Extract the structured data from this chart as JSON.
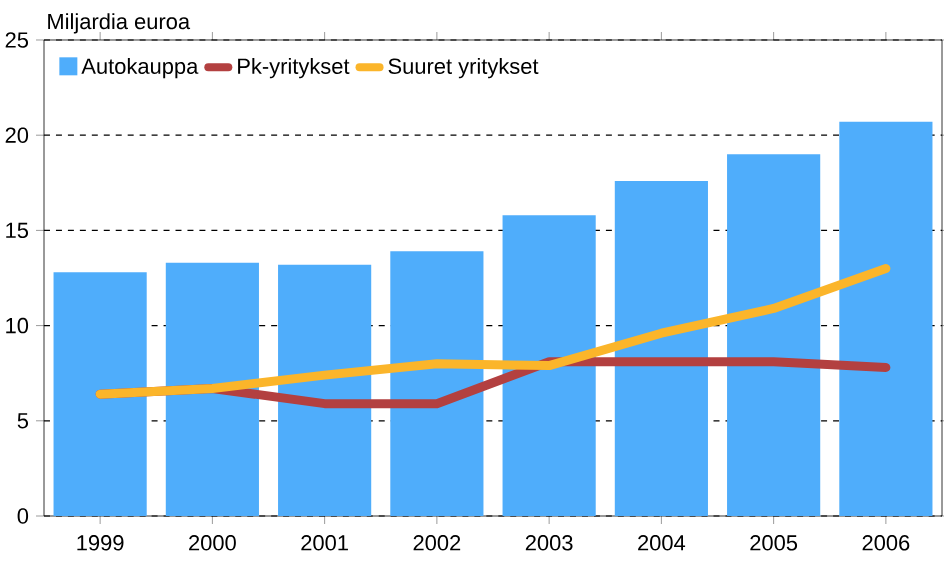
{
  "chart_data": {
    "type": "bar",
    "ylabel": "Miljardia euroa",
    "categories": [
      "1999",
      "2000",
      "2001",
      "2002",
      "2003",
      "2004",
      "2005",
      "2006"
    ],
    "series": [
      {
        "name": "Autokauppa",
        "color": "#4fadfb",
        "values": [
          12.8,
          13.3,
          13.2,
          13.9,
          15.8,
          17.6,
          19.0,
          20.7
        ]
      },
      {
        "name": "Pk-yritykset",
        "type": "line",
        "color": "#b34040",
        "values": [
          6.4,
          6.7,
          5.9,
          5.9,
          8.1,
          8.1,
          8.1,
          7.8
        ]
      },
      {
        "name": "Suuret yritykset",
        "type": "line",
        "color": "#fbb52a",
        "values": [
          6.4,
          6.7,
          7.4,
          8.0,
          7.9,
          9.6,
          10.9,
          13.0
        ]
      }
    ],
    "ylim": [
      0,
      25
    ],
    "yticks": [
      0,
      5,
      10,
      15,
      20,
      25
    ],
    "grid": "y",
    "legend": "top left"
  }
}
